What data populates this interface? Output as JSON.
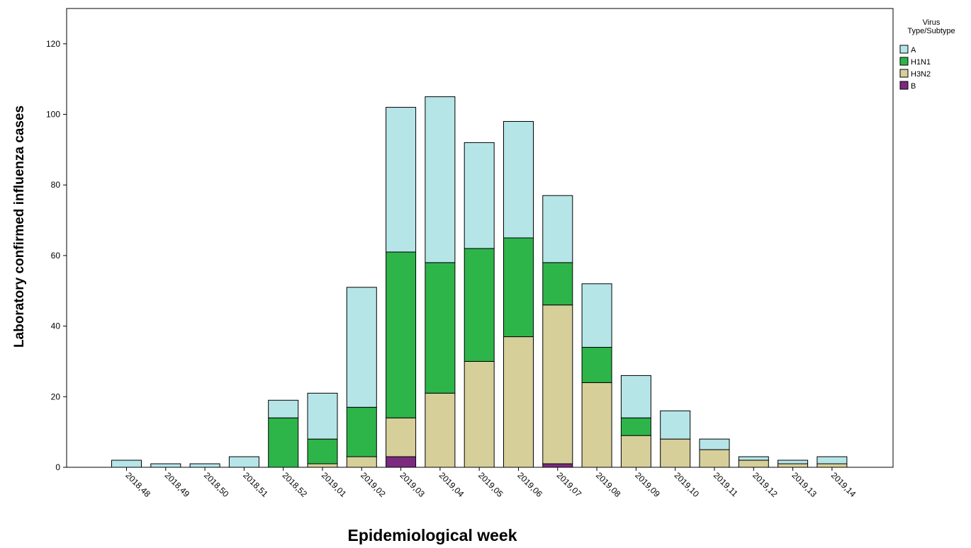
{
  "chart_data": {
    "type": "bar",
    "stacked": true,
    "title": "",
    "xlabel": "Epidemiological week",
    "ylabel": "Laboratory confirmed influenza cases",
    "ylim": [
      0,
      130
    ],
    "yticks": [
      0,
      20,
      40,
      60,
      80,
      100,
      120
    ],
    "grid": false,
    "legend_position": "top-right outside plot",
    "legend_title": "Virus\nType/Subtype",
    "categories": [
      "2018,48",
      "2018,49",
      "2018,50",
      "2018,51",
      "2018,52",
      "2019,01",
      "2019,02",
      "2019,03",
      "2019,04",
      "2019,05",
      "2019,06",
      "2019,07",
      "2019,08",
      "2019,09",
      "2019,10",
      "2019,11",
      "2019,12",
      "2019,13",
      "2019,14"
    ],
    "series": [
      {
        "name": "B",
        "color": "#7b2a7f",
        "values": [
          0,
          0,
          0,
          0,
          0,
          0,
          0,
          3,
          0,
          0,
          0,
          1,
          0,
          0,
          0,
          0,
          0,
          0,
          0
        ]
      },
      {
        "name": "H3N2",
        "color": "#d6cf9a",
        "values": [
          0,
          0,
          0,
          0,
          0,
          1,
          3,
          11,
          21,
          30,
          37,
          45,
          24,
          9,
          8,
          5,
          2,
          1,
          1
        ]
      },
      {
        "name": "H1N1",
        "color": "#2db54a",
        "values": [
          0,
          0,
          0,
          0,
          14,
          7,
          14,
          47,
          37,
          32,
          28,
          12,
          10,
          5,
          0,
          0,
          0,
          0,
          0
        ]
      },
      {
        "name": "A",
        "color": "#b6e5e8",
        "values": [
          2,
          1,
          1,
          3,
          5,
          13,
          34,
          41,
          47,
          30,
          33,
          19,
          18,
          12,
          8,
          3,
          1,
          1,
          2
        ]
      }
    ],
    "legend_order": [
      "A",
      "H1N1",
      "H3N2",
      "B"
    ]
  }
}
